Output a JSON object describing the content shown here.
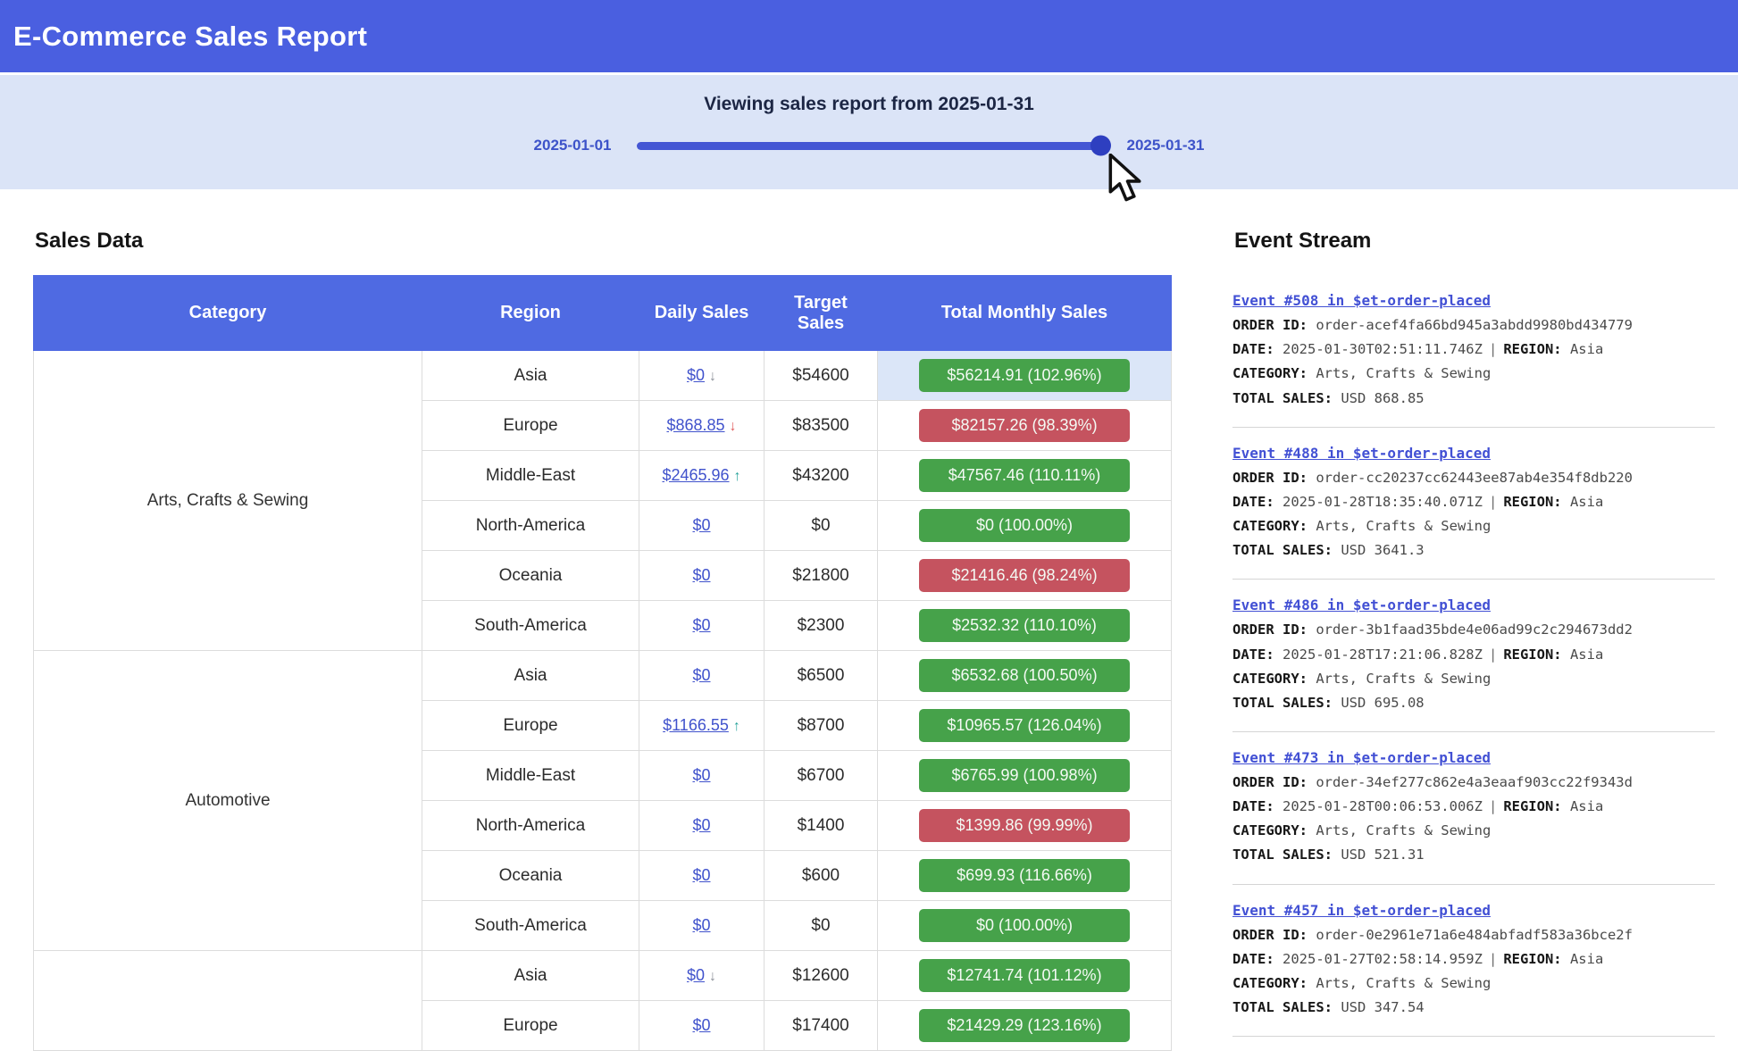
{
  "header": {
    "title": "E-Commerce Sales Report"
  },
  "slider": {
    "caption": "Viewing sales report from 2025-01-31",
    "min_label": "2025-01-01",
    "max_label": "2025-01-31",
    "value": "2025-01-31",
    "value_percent": 100
  },
  "icons": {
    "trend_down": "↓",
    "trend_up": "↑"
  },
  "colors": {
    "header_blue": "#4a5fe0",
    "table_header_blue": "#4f6ae2",
    "badge_green": "#46a24a",
    "badge_red": "#c5535f",
    "link_blue": "#4052cc",
    "highlight_row": "#dbe6f8",
    "slider_track": "#4456d4"
  },
  "sales": {
    "heading": "Sales Data",
    "columns": [
      "Category",
      "Region",
      "Daily Sales",
      "Target Sales",
      "Total Monthly Sales"
    ],
    "groups": [
      {
        "category": "Arts, Crafts & Sewing",
        "rows": [
          {
            "region": "Asia",
            "daily": "$0",
            "trend": "down-gray",
            "target": "$54600",
            "monthly": "$56214.91 (102.96%)",
            "status": "above",
            "highlight": true
          },
          {
            "region": "Europe",
            "daily": "$868.85",
            "trend": "down-red",
            "target": "$83500",
            "monthly": "$82157.26 (98.39%)",
            "status": "below",
            "highlight": false
          },
          {
            "region": "Middle-East",
            "daily": "$2465.96",
            "trend": "up-teal",
            "target": "$43200",
            "monthly": "$47567.46 (110.11%)",
            "status": "above",
            "highlight": false
          },
          {
            "region": "North-America",
            "daily": "$0",
            "trend": null,
            "target": "$0",
            "monthly": "$0 (100.00%)",
            "status": "above",
            "highlight": false
          },
          {
            "region": "Oceania",
            "daily": "$0",
            "trend": null,
            "target": "$21800",
            "monthly": "$21416.46 (98.24%)",
            "status": "below",
            "highlight": false
          },
          {
            "region": "South-America",
            "daily": "$0",
            "trend": null,
            "target": "$2300",
            "monthly": "$2532.32 (110.10%)",
            "status": "above",
            "highlight": false
          }
        ]
      },
      {
        "category": "Automotive",
        "rows": [
          {
            "region": "Asia",
            "daily": "$0",
            "trend": null,
            "target": "$6500",
            "monthly": "$6532.68 (100.50%)",
            "status": "above",
            "highlight": false
          },
          {
            "region": "Europe",
            "daily": "$1166.55",
            "trend": "up-teal",
            "target": "$8700",
            "monthly": "$10965.57 (126.04%)",
            "status": "above",
            "highlight": false
          },
          {
            "region": "Middle-East",
            "daily": "$0",
            "trend": null,
            "target": "$6700",
            "monthly": "$6765.99 (100.98%)",
            "status": "above",
            "highlight": false
          },
          {
            "region": "North-America",
            "daily": "$0",
            "trend": null,
            "target": "$1400",
            "monthly": "$1399.86 (99.99%)",
            "status": "below",
            "highlight": false
          },
          {
            "region": "Oceania",
            "daily": "$0",
            "trend": null,
            "target": "$600",
            "monthly": "$699.93 (116.66%)",
            "status": "above",
            "highlight": false
          },
          {
            "region": "South-America",
            "daily": "$0",
            "trend": null,
            "target": "$0",
            "monthly": "$0 (100.00%)",
            "status": "above",
            "highlight": false
          }
        ]
      },
      {
        "category": "",
        "rows": [
          {
            "region": "Asia",
            "daily": "$0",
            "trend": "down-gray",
            "target": "$12600",
            "monthly": "$12741.74 (101.12%)",
            "status": "above",
            "highlight": false
          },
          {
            "region": "Europe",
            "daily": "$0",
            "trend": null,
            "target": "$17400",
            "monthly": "$21429.29 (123.16%)",
            "status": "above",
            "highlight": false
          }
        ]
      }
    ]
  },
  "events": {
    "heading": "Event Stream",
    "labels": {
      "order_id": "ORDER ID:",
      "date": "DATE:",
      "region": "REGION:",
      "category": "CATEGORY:",
      "total_sales": "TOTAL SALES:",
      "separator": "|"
    },
    "items": [
      {
        "title": "Event #508 in $et-order-placed",
        "order_id": "order-acef4fa66bd945a3abdd9980bd434779",
        "date": "2025-01-30T02:51:11.746Z",
        "region": "Asia",
        "category": "Arts, Crafts & Sewing",
        "total_sales": "USD 868.85"
      },
      {
        "title": "Event #488 in $et-order-placed",
        "order_id": "order-cc20237cc62443ee87ab4e354f8db220",
        "date": "2025-01-28T18:35:40.071Z",
        "region": "Asia",
        "category": "Arts, Crafts & Sewing",
        "total_sales": "USD 3641.3"
      },
      {
        "title": "Event #486 in $et-order-placed",
        "order_id": "order-3b1faad35bde4e06ad99c2c294673dd2",
        "date": "2025-01-28T17:21:06.828Z",
        "region": "Asia",
        "category": "Arts, Crafts & Sewing",
        "total_sales": "USD 695.08"
      },
      {
        "title": "Event #473 in $et-order-placed",
        "order_id": "order-34ef277c862e4a3eaaf903cc22f9343d",
        "date": "2025-01-28T00:06:53.006Z",
        "region": "Asia",
        "category": "Arts, Crafts & Sewing",
        "total_sales": "USD 521.31"
      },
      {
        "title": "Event #457 in $et-order-placed",
        "order_id": "order-0e2961e71a6e484abfadf583a36bce2f",
        "date": "2025-01-27T02:58:14.959Z",
        "region": "Asia",
        "category": "Arts, Crafts & Sewing",
        "total_sales": "USD 347.54"
      }
    ]
  }
}
